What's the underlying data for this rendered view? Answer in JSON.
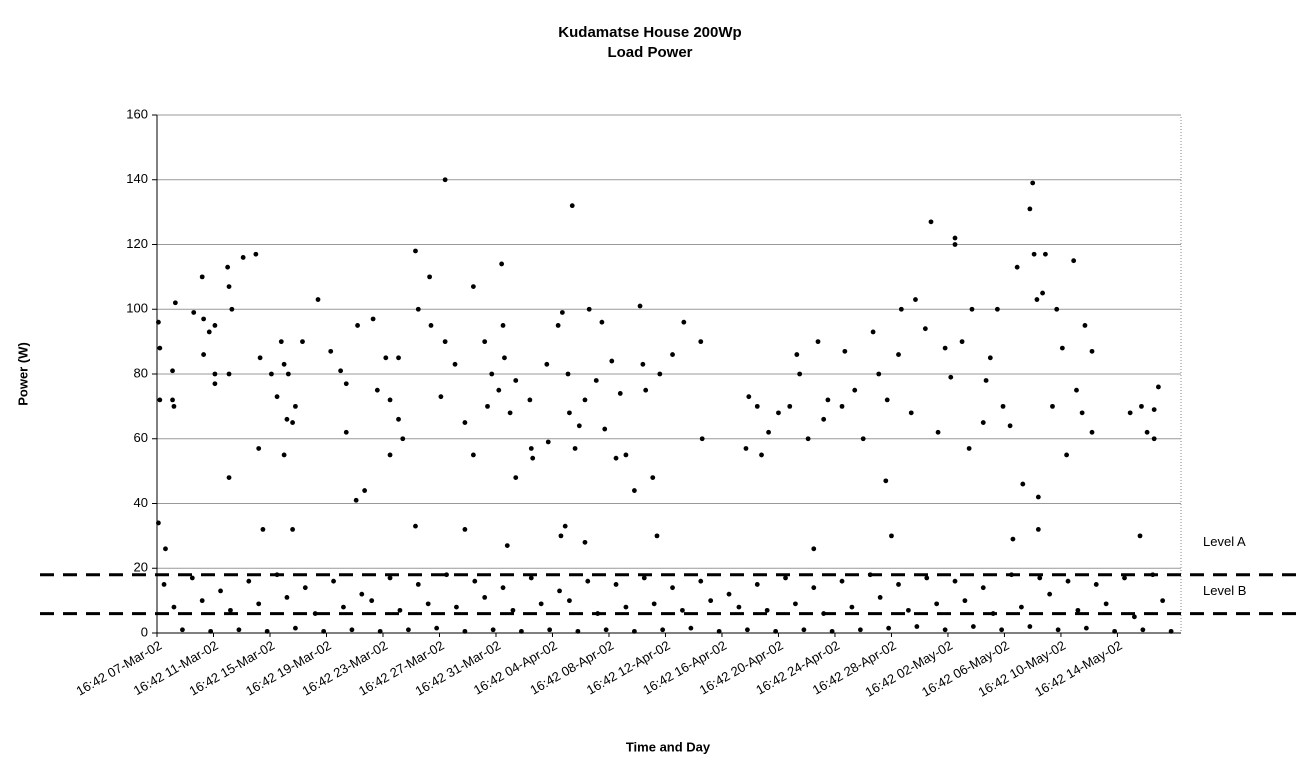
{
  "chart_data": {
    "type": "scatter",
    "title": [
      "Kudamatse House 200Wp",
      "Load Power"
    ],
    "x_label": "Time and Day",
    "y_label": "Power (W)",
    "color": "#000000",
    "grid": true,
    "ylim": [
      0,
      160
    ],
    "yticks": [
      0,
      20,
      40,
      60,
      80,
      100,
      120,
      140,
      160
    ],
    "xlim": [
      0,
      72.5
    ],
    "xticks": [
      {
        "value": 0,
        "label": "16:42 07-Mar-02"
      },
      {
        "value": 4,
        "label": "16:42 11-Mar-02"
      },
      {
        "value": 8,
        "label": "16:42 15-Mar-02"
      },
      {
        "value": 12,
        "label": "16:42 19-Mar-02"
      },
      {
        "value": 16,
        "label": "16:42 23-Mar-02"
      },
      {
        "value": 20,
        "label": "16:42 27-Mar-02"
      },
      {
        "value": 24,
        "label": "16:42 31-Mar-02"
      },
      {
        "value": 28,
        "label": "16:42 04-Apr-02"
      },
      {
        "value": 32,
        "label": "16:42 08-Apr-02"
      },
      {
        "value": 36,
        "label": "16:42 12-Apr-02"
      },
      {
        "value": 40,
        "label": "16:42 16-Apr-02"
      },
      {
        "value": 44,
        "label": "16:42 20-Apr-02"
      },
      {
        "value": 48,
        "label": "16:42 24-Apr-02"
      },
      {
        "value": 52,
        "label": "16:42 28-Apr-02"
      },
      {
        "value": 56,
        "label": "16:42 02-May-02"
      },
      {
        "value": 60,
        "label": "16:42 06-May-02"
      },
      {
        "value": 64,
        "label": "16:42 10-May-02"
      },
      {
        "value": 68,
        "label": "16:42 14-May-02"
      }
    ],
    "annotations": [
      {
        "label": "Level A",
        "value": 18
      },
      {
        "label": "Level B",
        "value": 6
      }
    ],
    "x": [
      0.1,
      0.2,
      0.2,
      1.1,
      1.2,
      1.1,
      1.3,
      2.6,
      3.2,
      3.3,
      3.3,
      3.7,
      4.1,
      4.1,
      4.1,
      5.0,
      5.1,
      5.3,
      5.1,
      5.1,
      6.1,
      7.0,
      7.3,
      7.2,
      8.1,
      8.5,
      8.8,
      9.0,
      9.2,
      9.3,
      9.6,
      9.8,
      10.3,
      9.0,
      11.4,
      12.3,
      13.0,
      13.4,
      13.4,
      14.1,
      14.2,
      14.7,
      15.3,
      15.6,
      16.2,
      16.5,
      16.5,
      17.1,
      17.4,
      17.1,
      18.3,
      18.5,
      19.3,
      19.4,
      20.4,
      20.4,
      20.1,
      21.1,
      21.8,
      22.4,
      22.4,
      23.2,
      23.4,
      23.7,
      24.2,
      24.4,
      24.5,
      24.6,
      25.0,
      25.4,
      25.4,
      26.4,
      26.5,
      26.6,
      27.7,
      27.6,
      28.4,
      28.7,
      29.1,
      29.4,
      29.2,
      29.6,
      29.9,
      30.3,
      30.6,
      31.1,
      31.5,
      31.7,
      32.2,
      32.5,
      32.8,
      33.2,
      33.8,
      34.2,
      34.4,
      34.6,
      35.1,
      35.6,
      36.5,
      37.3,
      38.5,
      38.6,
      41.7,
      41.9,
      42.5,
      42.8,
      43.3,
      44.0,
      44.8,
      45.3,
      45.5,
      46.1,
      46.8,
      47.2,
      47.5,
      48.5,
      48.7,
      49.4,
      50.0,
      50.7,
      51.1,
      51.6,
      51.7,
      52.5,
      52.7,
      53.4,
      53.7,
      54.4,
      54.8,
      55.3,
      55.8,
      56.2,
      56.5,
      56.5,
      57.0,
      57.5,
      57.7,
      58.5,
      58.7,
      59.0,
      59.5,
      59.9,
      60.4,
      60.9,
      61.3,
      61.8,
      62.0,
      62.1,
      62.3,
      62.4,
      62.7,
      62.9,
      63.4,
      63.7,
      64.1,
      64.4,
      64.9,
      65.1,
      65.5,
      65.7,
      66.2,
      66.2,
      68.9,
      69.7,
      70.1,
      70.6,
      70.9,
      70.6,
      0.1,
      0.6,
      7.5,
      9.6,
      18.3,
      21.8,
      24.8,
      28.6,
      28.9,
      30.3,
      35.4,
      46.5,
      52.0,
      60.6,
      62.4,
      69.6,
      0.5,
      1.2,
      1.8,
      2.5,
      3.2,
      3.8,
      4.5,
      5.2,
      5.8,
      6.5,
      7.2,
      7.8,
      8.5,
      9.2,
      9.8,
      10.5,
      11.2,
      11.8,
      12.5,
      13.2,
      13.8,
      14.5,
      15.2,
      15.8,
      16.5,
      17.2,
      17.8,
      18.5,
      19.2,
      19.8,
      20.5,
      21.2,
      21.8,
      22.5,
      23.2,
      23.8,
      24.5,
      25.2,
      25.8,
      26.5,
      27.2,
      27.8,
      28.5,
      29.2,
      29.8,
      30.5,
      31.2,
      31.8,
      32.5,
      33.2,
      33.8,
      34.5,
      35.2,
      35.8,
      36.5,
      37.2,
      37.8,
      38.5,
      39.2,
      39.8,
      40.5,
      41.2,
      41.8,
      42.5,
      43.2,
      43.8,
      44.5,
      45.2,
      45.8,
      46.5,
      47.2,
      47.8,
      48.5,
      49.2,
      49.8,
      50.5,
      51.2,
      51.8,
      52.5,
      53.2,
      53.8,
      54.5,
      55.2,
      55.8,
      56.5,
      57.2,
      57.8,
      58.5,
      59.2,
      59.8,
      60.5,
      61.2,
      61.8,
      62.5,
      63.2,
      63.8,
      64.5,
      65.2,
      65.8,
      66.5,
      67.2,
      67.8,
      68.5,
      69.2,
      69.8,
      70.5,
      71.2,
      71.8
    ],
    "values": [
      96,
      88,
      72,
      72,
      70,
      81,
      102,
      99,
      110,
      97,
      86,
      93,
      95,
      80,
      77,
      113,
      107,
      100,
      48,
      80,
      116,
      117,
      85,
      57,
      80,
      73,
      90,
      83,
      66,
      80,
      65,
      70,
      90,
      55,
      103,
      87,
      81,
      62,
      77,
      41,
      95,
      44,
      97,
      75,
      85,
      55,
      72,
      85,
      60,
      66,
      118,
      100,
      110,
      95,
      140,
      90,
      73,
      83,
      65,
      107,
      55,
      90,
      70,
      80,
      75,
      114,
      95,
      85,
      68,
      78,
      48,
      72,
      57,
      54,
      59,
      83,
      95,
      99,
      80,
      132,
      68,
      57,
      64,
      72,
      100,
      78,
      96,
      63,
      84,
      54,
      74,
      55,
      44,
      101,
      83,
      75,
      48,
      80,
      86,
      96,
      90,
      60,
      57,
      73,
      70,
      55,
      62,
      68,
      70,
      86,
      80,
      60,
      90,
      66,
      72,
      70,
      87,
      75,
      60,
      93,
      80,
      47,
      72,
      86,
      100,
      68,
      103,
      94,
      127,
      62,
      88,
      79,
      122,
      120,
      90,
      57,
      100,
      65,
      78,
      85,
      100,
      70,
      64,
      113,
      46,
      131,
      139,
      117,
      103,
      42,
      105,
      117,
      70,
      100,
      88,
      55,
      115,
      75,
      68,
      95,
      87,
      62,
      68,
      70,
      62,
      60,
      76,
      69,
      34,
      26,
      32,
      32,
      33,
      32,
      27,
      30,
      33,
      28,
      30,
      26,
      30,
      29,
      32,
      30,
      15,
      8,
      1,
      17,
      10,
      0.5,
      13,
      7,
      1,
      16,
      9,
      0.5,
      18,
      11,
      1.5,
      14,
      6,
      0.5,
      16,
      8,
      1,
      12,
      10,
      0.5,
      17,
      7,
      1,
      15,
      9,
      1.5,
      18,
      8,
      0.5,
      16,
      11,
      1,
      14,
      7,
      0.5,
      17,
      9,
      1,
      13,
      10,
      0.5,
      16,
      6,
      1,
      15,
      8,
      0.5,
      17,
      9,
      1,
      14,
      7,
      1.5,
      16,
      10,
      0.5,
      12,
      8,
      1,
      15,
      7,
      0.5,
      17,
      9,
      1,
      14,
      6,
      0.5,
      16,
      8,
      1,
      18,
      11,
      1.5,
      15,
      7,
      2,
      17,
      9,
      1,
      16,
      10,
      2,
      14,
      6,
      1,
      18,
      8,
      2,
      17,
      12,
      1,
      16,
      7,
      1.5,
      15,
      9,
      0.5,
      17,
      5,
      1,
      18,
      10,
      0.5
    ]
  }
}
